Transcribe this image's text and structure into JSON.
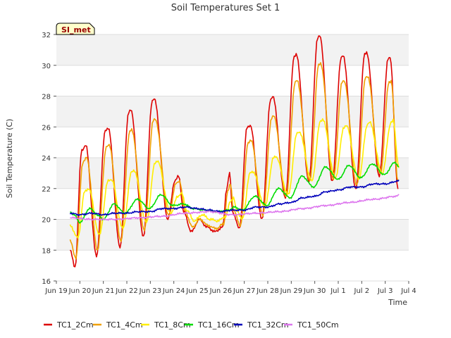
{
  "chart_data": {
    "type": "line",
    "title": "Soil Temperatures Set 1",
    "xlabel": "Time",
    "ylabel": "Soil Temperature (C)",
    "ylim": [
      16,
      32
    ],
    "xlim": [
      "Jun 19",
      "Jul 4"
    ],
    "yticks": [
      16,
      18,
      20,
      22,
      24,
      26,
      28,
      30,
      32
    ],
    "xticks": [
      "Jun 19",
      "Jun 20",
      "Jun 21",
      "Jun 22",
      "Jun 23",
      "Jun 24",
      "Jun 25",
      "Jun 26",
      "Jun 27",
      "Jun 28",
      "Jun 29",
      "Jun 30",
      "Jul 1",
      "Jul 2",
      "Jul 3",
      "Jul 4"
    ],
    "grid": "horizontal",
    "background_bands": "alternating light gray",
    "legend_position": "bottom",
    "annotation": "SI_met",
    "series": [
      {
        "name": "TC1_2Cm",
        "color": "#dd0000",
        "points": [
          [
            "Jun 19 14:00",
            18.0
          ],
          [
            "Jun 19 19:00",
            16.9
          ],
          [
            "Jun 20 02:00",
            24.5
          ],
          [
            "Jun 20 06:00",
            24.8
          ],
          [
            "Jun 20 17:00",
            17.6
          ],
          [
            "Jun 21 02:00",
            25.8
          ],
          [
            "Jun 21 05:00",
            25.9
          ],
          [
            "Jun 21 17:00",
            18.2
          ],
          [
            "Jun 22 02:00",
            27.0
          ],
          [
            "Jun 22 04:00",
            27.1
          ],
          [
            "Jun 22 17:00",
            18.9
          ],
          [
            "Jun 23 02:00",
            27.7
          ],
          [
            "Jun 23 04:00",
            27.8
          ],
          [
            "Jun 23 18:00",
            20.0
          ],
          [
            "Jun 24 01:00",
            22.5
          ],
          [
            "Jun 24 05:00",
            22.8
          ],
          [
            "Jun 24 10:00",
            20.5
          ],
          [
            "Jun 24 18:00",
            19.2
          ],
          [
            "Jun 25 02:00",
            20.0
          ],
          [
            "Jun 25 10:00",
            19.5
          ],
          [
            "Jun 25 18:00",
            19.2
          ],
          [
            "Jun 26 02:00",
            19.5
          ],
          [
            "Jun 26 06:00",
            22.0
          ],
          [
            "Jun 26 09:00",
            23.0
          ],
          [
            "Jun 26 12:00",
            20.5
          ],
          [
            "Jun 26 19:00",
            19.4
          ],
          [
            "Jun 27 03:00",
            26.0
          ],
          [
            "Jun 27 06:00",
            26.1
          ],
          [
            "Jun 27 18:00",
            20.0
          ],
          [
            "Jun 28 03:00",
            27.8
          ],
          [
            "Jun 28 05:00",
            28.0
          ],
          [
            "Jun 28 18:00",
            21.4
          ],
          [
            "Jun 29 03:00",
            30.6
          ],
          [
            "Jun 29 05:00",
            30.7
          ],
          [
            "Jun 29 18:00",
            22.5
          ],
          [
            "Jun 30 03:00",
            31.8
          ],
          [
            "Jun 30 05:00",
            31.9
          ],
          [
            "Jun 30 18:00",
            22.5
          ],
          [
            "Jul 1 03:00",
            30.5
          ],
          [
            "Jul 1 05:00",
            30.6
          ],
          [
            "Jul 1 18:00",
            22.0
          ],
          [
            "Jul 2 03:00",
            30.7
          ],
          [
            "Jul 2 05:00",
            30.8
          ],
          [
            "Jul 2 18:00",
            22.8
          ],
          [
            "Jul 3 03:00",
            30.4
          ],
          [
            "Jul 3 05:00",
            30.5
          ],
          [
            "Jul 3 13:00",
            22.0
          ]
        ]
      },
      {
        "name": "TC1_4Cm",
        "color": "#f0a000",
        "points": [
          [
            "Jun 19 14:00",
            18.6
          ],
          [
            "Jun 19 20:00",
            17.5
          ],
          [
            "Jun 20 03:00",
            23.7
          ],
          [
            "Jun 20 07:00",
            24.0
          ],
          [
            "Jun 20 18:00",
            18.0
          ],
          [
            "Jun 21 03:00",
            24.7
          ],
          [
            "Jun 21 06:00",
            24.8
          ],
          [
            "Jun 21 18:00",
            18.6
          ],
          [
            "Jun 22 03:00",
            25.7
          ],
          [
            "Jun 22 05:00",
            25.8
          ],
          [
            "Jun 22 18:00",
            19.3
          ],
          [
            "Jun 23 03:00",
            26.4
          ],
          [
            "Jun 23 05:00",
            26.5
          ],
          [
            "Jun 23 19:00",
            20.2
          ],
          [
            "Jun 24 02:00",
            22.3
          ],
          [
            "Jun 24 06:00",
            22.5
          ],
          [
            "Jun 24 11:00",
            20.6
          ],
          [
            "Jun 24 19:00",
            19.5
          ],
          [
            "Jun 25 03:00",
            20.0
          ],
          [
            "Jun 25 11:00",
            19.6
          ],
          [
            "Jun 25 19:00",
            19.4
          ],
          [
            "Jun 26 03:00",
            19.7
          ],
          [
            "Jun 26 07:00",
            21.8
          ],
          [
            "Jun 26 10:00",
            22.3
          ],
          [
            "Jun 26 13:00",
            20.6
          ],
          [
            "Jun 26 20:00",
            19.6
          ],
          [
            "Jun 27 04:00",
            25.0
          ],
          [
            "Jun 27 07:00",
            25.1
          ],
          [
            "Jun 27 19:00",
            20.3
          ],
          [
            "Jun 28 04:00",
            26.6
          ],
          [
            "Jun 28 06:00",
            26.7
          ],
          [
            "Jun 28 19:00",
            21.5
          ],
          [
            "Jun 29 04:00",
            28.9
          ],
          [
            "Jun 29 06:00",
            29.0
          ],
          [
            "Jun 29 19:00",
            22.5
          ],
          [
            "Jun 30 04:00",
            30.0
          ],
          [
            "Jun 30 06:00",
            30.1
          ],
          [
            "Jun 30 19:00",
            22.6
          ],
          [
            "Jul 1 04:00",
            28.9
          ],
          [
            "Jul 1 06:00",
            29.0
          ],
          [
            "Jul 1 19:00",
            22.2
          ],
          [
            "Jul 2 04:00",
            29.2
          ],
          [
            "Jul 2 06:00",
            29.3
          ],
          [
            "Jul 2 19:00",
            22.9
          ],
          [
            "Jul 3 04:00",
            28.9
          ],
          [
            "Jul 3 06:00",
            29.0
          ],
          [
            "Jul 3 13:00",
            22.5
          ]
        ]
      },
      {
        "name": "TC1_8Cm",
        "color": "#ffee00",
        "points": [
          [
            "Jun 19 14:00",
            19.6
          ],
          [
            "Jun 19 22:00",
            18.8
          ],
          [
            "Jun 20 05:00",
            21.8
          ],
          [
            "Jun 20 09:00",
            22.0
          ],
          [
            "Jun 20 20:00",
            19.0
          ],
          [
            "Jun 21 05:00",
            22.5
          ],
          [
            "Jun 21 08:00",
            22.6
          ],
          [
            "Jun 21 20:00",
            19.4
          ],
          [
            "Jun 22 05:00",
            23.1
          ],
          [
            "Jun 22 07:00",
            23.2
          ],
          [
            "Jun 22 20:00",
            19.8
          ],
          [
            "Jun 23 05:00",
            23.7
          ],
          [
            "Jun 23 07:00",
            23.8
          ],
          [
            "Jun 23 21:00",
            20.4
          ],
          [
            "Jun 24 04:00",
            21.5
          ],
          [
            "Jun 24 08:00",
            21.7
          ],
          [
            "Jun 24 13:00",
            20.6
          ],
          [
            "Jun 24 21:00",
            19.9
          ],
          [
            "Jun 25 05:00",
            20.3
          ],
          [
            "Jun 25 13:00",
            20.0
          ],
          [
            "Jun 25 21:00",
            19.9
          ],
          [
            "Jun 26 05:00",
            20.2
          ],
          [
            "Jun 26 10:00",
            21.2
          ],
          [
            "Jun 26 13:00",
            21.4
          ],
          [
            "Jun 26 16:00",
            20.6
          ],
          [
            "Jun 26 22:00",
            20.0
          ],
          [
            "Jun 27 06:00",
            23.0
          ],
          [
            "Jun 27 09:00",
            23.1
          ],
          [
            "Jun 27 21:00",
            20.8
          ],
          [
            "Jun 28 06:00",
            24.0
          ],
          [
            "Jun 28 08:00",
            24.1
          ],
          [
            "Jun 28 21:00",
            21.6
          ],
          [
            "Jun 29 06:00",
            25.6
          ],
          [
            "Jun 29 08:00",
            25.7
          ],
          [
            "Jun 29 21:00",
            22.5
          ],
          [
            "Jun 30 06:00",
            26.4
          ],
          [
            "Jun 30 08:00",
            26.5
          ],
          [
            "Jun 30 21:00",
            22.7
          ],
          [
            "Jul 1 06:00",
            26.0
          ],
          [
            "Jul 1 08:00",
            26.1
          ],
          [
            "Jul 1 21:00",
            22.6
          ],
          [
            "Jul 2 06:00",
            26.2
          ],
          [
            "Jul 2 08:00",
            26.3
          ],
          [
            "Jul 2 21:00",
            23.0
          ],
          [
            "Jul 3 06:00",
            26.3
          ],
          [
            "Jul 3 08:00",
            26.4
          ],
          [
            "Jul 3 14:00",
            23.4
          ]
        ]
      },
      {
        "name": "TC1_16Cm",
        "color": "#00dd00",
        "points": [
          [
            "Jun 19 14:00",
            20.5
          ],
          [
            "Jun 19 18:00",
            20.3
          ],
          [
            "Jun 20 00:00",
            19.8
          ],
          [
            "Jun 20 10:00",
            20.7
          ],
          [
            "Jun 20 20:00",
            20.2
          ],
          [
            "Jun 21 00:00",
            20.0
          ],
          [
            "Jun 21 11:00",
            21.0
          ],
          [
            "Jun 21 22:00",
            20.4
          ],
          [
            "Jun 22 11:00",
            21.3
          ],
          [
            "Jun 22 23:00",
            20.7
          ],
          [
            "Jun 23 11:00",
            21.6
          ],
          [
            "Jun 23 23:00",
            20.9
          ],
          [
            "Jun 24 10:00",
            21.0
          ],
          [
            "Jun 24 20:00",
            20.7
          ],
          [
            "Jun 25 08:00",
            20.6
          ],
          [
            "Jun 25 20:00",
            20.5
          ],
          [
            "Jun 26 08:00",
            20.6
          ],
          [
            "Jun 26 14:00",
            20.8
          ],
          [
            "Jun 26 22:00",
            20.6
          ],
          [
            "Jun 27 11:00",
            21.5
          ],
          [
            "Jun 27 23:00",
            20.9
          ],
          [
            "Jun 28 11:00",
            22.0
          ],
          [
            "Jun 28 23:00",
            21.4
          ],
          [
            "Jun 29 11:00",
            22.8
          ],
          [
            "Jun 29 23:00",
            22.1
          ],
          [
            "Jun 30 11:00",
            23.4
          ],
          [
            "Jul 1 00:00",
            22.6
          ],
          [
            "Jul 1 11:00",
            23.5
          ],
          [
            "Jul 1 23:00",
            22.7
          ],
          [
            "Jul 2 11:00",
            23.6
          ],
          [
            "Jul 2 23:00",
            22.9
          ],
          [
            "Jul 3 10:00",
            23.7
          ],
          [
            "Jul 3 14:00",
            23.4
          ]
        ]
      },
      {
        "name": "TC1_32Cm",
        "color": "#0000bb",
        "points": [
          [
            "Jun 19 14:00",
            20.4
          ],
          [
            "Jun 20 00:00",
            20.3
          ],
          [
            "Jun 20 12:00",
            20.4
          ],
          [
            "Jun 21 00:00",
            20.3
          ],
          [
            "Jun 21 12:00",
            20.4
          ],
          [
            "Jun 22 00:00",
            20.4
          ],
          [
            "Jun 22 12:00",
            20.5
          ],
          [
            "Jun 23 00:00",
            20.5
          ],
          [
            "Jun 23 12:00",
            20.7
          ],
          [
            "Jun 24 00:00",
            20.7
          ],
          [
            "Jun 24 12:00",
            20.8
          ],
          [
            "Jun 25 00:00",
            20.7
          ],
          [
            "Jun 25 12:00",
            20.6
          ],
          [
            "Jun 26 00:00",
            20.5
          ],
          [
            "Jun 26 12:00",
            20.6
          ],
          [
            "Jun 27 00:00",
            20.6
          ],
          [
            "Jun 27 12:00",
            20.8
          ],
          [
            "Jun 28 00:00",
            20.8
          ],
          [
            "Jun 28 12:00",
            21.0
          ],
          [
            "Jun 29 00:00",
            21.1
          ],
          [
            "Jun 29 12:00",
            21.4
          ],
          [
            "Jun 30 00:00",
            21.5
          ],
          [
            "Jun 30 12:00",
            21.8
          ],
          [
            "Jul 1 00:00",
            21.9
          ],
          [
            "Jul 1 12:00",
            22.1
          ],
          [
            "Jul 2 00:00",
            22.1
          ],
          [
            "Jul 2 12:00",
            22.3
          ],
          [
            "Jul 3 00:00",
            22.3
          ],
          [
            "Jul 3 14:00",
            22.5
          ]
        ]
      },
      {
        "name": "TC1_50Cm",
        "color": "#dd77ee",
        "points": [
          [
            "Jun 19 14:00",
            20.1
          ],
          [
            "Jun 20 12:00",
            20.0
          ],
          [
            "Jun 21 12:00",
            20.0
          ],
          [
            "Jun 22 12:00",
            20.1
          ],
          [
            "Jun 23 12:00",
            20.2
          ],
          [
            "Jun 24 12:00",
            20.4
          ],
          [
            "Jun 25 12:00",
            20.5
          ],
          [
            "Jun 26 12:00",
            20.3
          ],
          [
            "Jun 27 12:00",
            20.4
          ],
          [
            "Jun 28 12:00",
            20.5
          ],
          [
            "Jun 29 12:00",
            20.7
          ],
          [
            "Jun 30 12:00",
            20.9
          ],
          [
            "Jul 1 12:00",
            21.1
          ],
          [
            "Jul 2 12:00",
            21.3
          ],
          [
            "Jul 3 12:00",
            21.5
          ],
          [
            "Jul 3 14:00",
            21.6
          ]
        ]
      }
    ]
  }
}
